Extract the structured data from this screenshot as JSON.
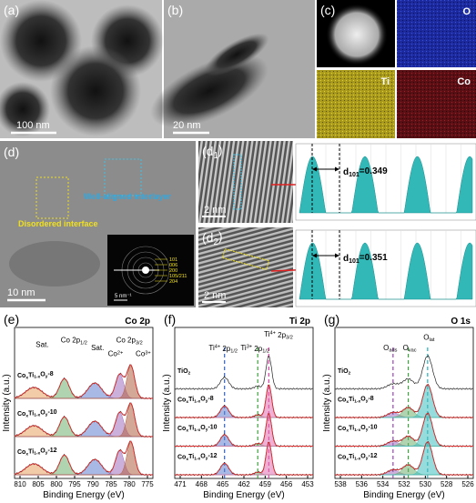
{
  "panels": {
    "a": {
      "label": "(a)",
      "scale": "100 nm"
    },
    "b": {
      "label": "(b)",
      "scale": "20 nm"
    },
    "c": {
      "label": "(c)",
      "maps": [
        "O",
        "Ti",
        "Co"
      ]
    },
    "d": {
      "label": "(d)",
      "scale": "10 nm",
      "annotations": [
        "Disordered interface",
        "Well-aligned interlayer"
      ],
      "saed_rings": [
        "101",
        "006",
        "200",
        "105/211",
        "204"
      ],
      "saed_scale": "5 nm⁻¹"
    },
    "d1": {
      "label": [
        {
          "t": "(d"
        },
        {
          "sub": "1"
        },
        {
          "t": ")"
        }
      ],
      "scale": "2 nm",
      "spacing": [
        {
          "t": "d"
        },
        {
          "sub": "101"
        },
        {
          "t": "=0.349"
        }
      ]
    },
    "d2": {
      "label": [
        {
          "t": "(d"
        },
        {
          "sub": "2"
        },
        {
          "t": ")"
        }
      ],
      "scale": "2 nm",
      "spacing": [
        {
          "t": "d"
        },
        {
          "sub": "101"
        },
        {
          "t": "=0.351"
        }
      ]
    },
    "e": {
      "label": "(e)",
      "title": "Co 2p",
      "xlabel": "Binding Energy (eV)",
      "ylabel": "Intensity (a.u.)",
      "xticks": [
        810,
        805,
        800,
        795,
        790,
        785,
        780,
        775
      ],
      "peak_labels": [
        "Sat.",
        [
          {
            "t": "Co 2p"
          },
          {
            "sub": "1/2"
          }
        ],
        "Sat.",
        [
          {
            "t": "Co 2p"
          },
          {
            "sub": "3/2"
          }
        ],
        [
          {
            "t": "Co"
          },
          {
            "sup": "2+"
          }
        ],
        [
          {
            "t": "Co"
          },
          {
            "sup": "3+"
          }
        ]
      ],
      "samples": [
        [
          {
            "t": "Co"
          },
          {
            "sub": "x"
          },
          {
            "t": "Ti"
          },
          {
            "sub": "1-x"
          },
          {
            "t": "O"
          },
          {
            "sub": "y"
          },
          {
            "t": "-8"
          }
        ],
        [
          {
            "t": "Co"
          },
          {
            "sub": "x"
          },
          {
            "t": "Ti"
          },
          {
            "sub": "1-x"
          },
          {
            "t": "O"
          },
          {
            "sub": "y"
          },
          {
            "t": "-10"
          }
        ],
        [
          {
            "t": "Co"
          },
          {
            "sub": "x"
          },
          {
            "t": "Ti"
          },
          {
            "sub": "1-x"
          },
          {
            "t": "O"
          },
          {
            "sub": "y"
          },
          {
            "t": "-12"
          }
        ]
      ]
    },
    "f": {
      "label": "(f)",
      "title": "Ti 2p",
      "xlabel": "Binding Energy (eV)",
      "ylabel": "Intensity (a.u.)",
      "xticks": [
        471,
        468,
        465,
        462,
        459,
        456,
        453
      ],
      "peak_labels": [
        [
          {
            "t": "Ti"
          },
          {
            "sup": "4+"
          },
          {
            "t": " 2p"
          },
          {
            "sub": "1/2"
          }
        ],
        [
          {
            "t": "Ti"
          },
          {
            "sup": "3+"
          },
          {
            "t": " 2p"
          },
          {
            "sub": "1/2"
          }
        ],
        [
          {
            "t": "Ti"
          },
          {
            "sup": "4+"
          },
          {
            "t": " 2p"
          },
          {
            "sub": "3/2"
          }
        ]
      ],
      "samples": [
        [
          {
            "t": "TiO"
          },
          {
            "sub": "2"
          }
        ],
        [
          {
            "t": "Co"
          },
          {
            "sub": "x"
          },
          {
            "t": "Ti"
          },
          {
            "sub": "1-x"
          },
          {
            "t": "O"
          },
          {
            "sub": "y"
          },
          {
            "t": "-8"
          }
        ],
        [
          {
            "t": "Co"
          },
          {
            "sub": "x"
          },
          {
            "t": "Ti"
          },
          {
            "sub": "1-x"
          },
          {
            "t": "O"
          },
          {
            "sub": "y"
          },
          {
            "t": "-10"
          }
        ],
        [
          {
            "t": "Co"
          },
          {
            "sub": "x"
          },
          {
            "t": "Ti"
          },
          {
            "sub": "1-x"
          },
          {
            "t": "O"
          },
          {
            "sub": "y"
          },
          {
            "t": "-12"
          }
        ]
      ]
    },
    "g": {
      "label": "(g)",
      "title": "O 1s",
      "xlabel": "Binding Energy (eV)",
      "ylabel": "Intensity (a.u.)",
      "xticks": [
        538,
        536,
        534,
        532,
        530,
        528,
        526
      ],
      "peak_labels": [
        [
          {
            "t": "O"
          },
          {
            "sub": "ads"
          }
        ],
        [
          {
            "t": "O"
          },
          {
            "sub": "vac"
          }
        ],
        [
          {
            "t": "O"
          },
          {
            "sub": "lat"
          }
        ]
      ],
      "samples": [
        [
          {
            "t": "TiO"
          },
          {
            "sub": "2"
          }
        ],
        [
          {
            "t": "Co"
          },
          {
            "sub": "x"
          },
          {
            "t": "Ti"
          },
          {
            "sub": "1-x"
          },
          {
            "t": "O"
          },
          {
            "sub": "y"
          },
          {
            "t": "-8"
          }
        ],
        [
          {
            "t": "Co"
          },
          {
            "sub": "x"
          },
          {
            "t": "Ti"
          },
          {
            "sub": "1-x"
          },
          {
            "t": "O"
          },
          {
            "sub": "y"
          },
          {
            "t": "-10"
          }
        ],
        [
          {
            "t": "Co"
          },
          {
            "sub": "x"
          },
          {
            "t": "Ti"
          },
          {
            "sub": "1-x"
          },
          {
            "t": "O"
          },
          {
            "sub": "y"
          },
          {
            "t": "-12"
          }
        ]
      ]
    }
  }
}
